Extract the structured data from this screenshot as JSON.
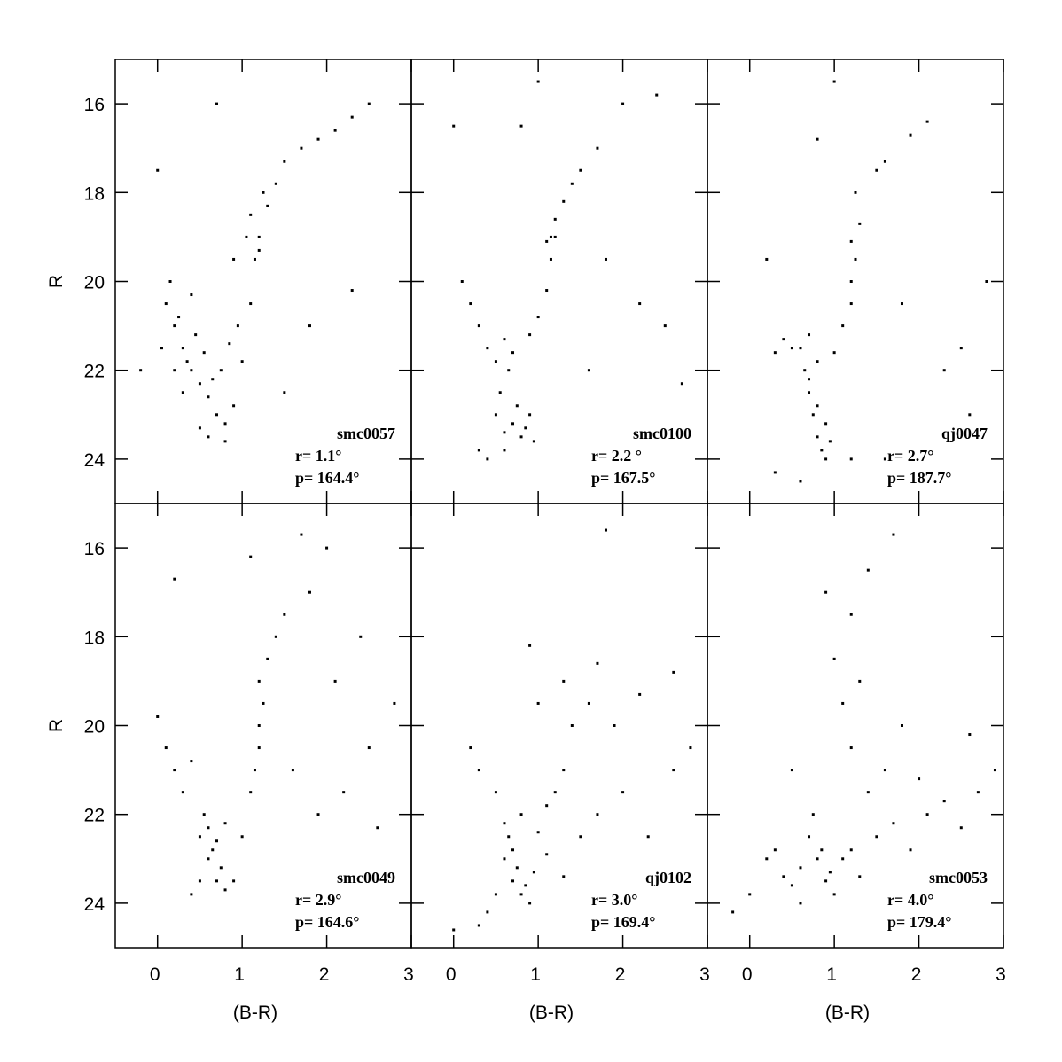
{
  "chart_data": [
    {
      "type": "scatter",
      "annotations": [
        "smc0057",
        "r= 1.1°",
        "p= 164.4°"
      ],
      "ylabel": "R",
      "color": "#000000",
      "xlim": [
        -0.5,
        3
      ],
      "ylim": [
        25,
        15
      ],
      "xticks": [
        0,
        1,
        2,
        3
      ],
      "yticks": [
        16,
        18,
        20,
        22,
        24
      ],
      "x": [
        0.1,
        0.2,
        0.3,
        0.4,
        0.5,
        0.6,
        0.7,
        0.8,
        0.9,
        1.0,
        0.15,
        0.25,
        0.35,
        0.45,
        0.55,
        0.65,
        0.75,
        0.85,
        0.95,
        0.5,
        0.6,
        0.8,
        0.3,
        0.2,
        0.05,
        1.1,
        1.15,
        1.2,
        1.1,
        1.25,
        1.3,
        1.4,
        1.5,
        1.7,
        1.9,
        2.1,
        2.3,
        2.5,
        1.2,
        1.05,
        0.0,
        -0.2,
        1.8,
        2.3,
        0.7,
        1.5,
        0.4,
        0.9
      ],
      "y": [
        20.5,
        21,
        21.5,
        22,
        22.3,
        22.6,
        23,
        23.2,
        22.8,
        21.8,
        20,
        20.8,
        21.8,
        21.2,
        21.6,
        22.2,
        22,
        21.4,
        21,
        23.3,
        23.5,
        23.6,
        22.5,
        22,
        21.5,
        20.5,
        19.5,
        19,
        18.5,
        18,
        18.3,
        17.8,
        17.3,
        17,
        16.8,
        16.6,
        16.3,
        16,
        19.3,
        19,
        17.5,
        22,
        21,
        20.2,
        16,
        22.5,
        20.3,
        19.5
      ]
    },
    {
      "type": "scatter",
      "annotations": [
        "smc0100",
        "r= 2.2 °",
        "p= 167.5°"
      ],
      "color": "#000000",
      "xlim": [
        -0.5,
        3
      ],
      "ylim": [
        25,
        15
      ],
      "xticks": [
        0,
        1,
        2,
        3
      ],
      "yticks": [
        16,
        18,
        20,
        22,
        24
      ],
      "x": [
        0.5,
        0.6,
        0.7,
        0.8,
        0.9,
        0.55,
        0.65,
        0.75,
        0.85,
        0.95,
        0.4,
        0.3,
        0.2,
        0.1,
        0.5,
        0.6,
        0.7,
        0.9,
        1.0,
        1.1,
        1.15,
        1.15,
        1.2,
        1.3,
        1.4,
        1.5,
        1.7,
        1.1,
        1.2,
        2.0,
        2.4,
        0.6,
        0.3,
        2.2,
        2.5,
        2.7,
        1.6,
        0.0,
        1.0,
        0.4,
        1.8,
        0.8
      ],
      "y": [
        23,
        23.4,
        23.2,
        23.5,
        23,
        22.5,
        22,
        22.8,
        23.3,
        23.6,
        21.5,
        21,
        20.5,
        20,
        21.8,
        21.3,
        21.6,
        21.2,
        20.8,
        20.2,
        19.5,
        19,
        18.6,
        18.2,
        17.8,
        17.5,
        17,
        19.1,
        19,
        16,
        15.8,
        23.8,
        23.8,
        20.5,
        21,
        22.3,
        22,
        16.5,
        15.5,
        24,
        19.5,
        16.5
      ]
    },
    {
      "type": "scatter",
      "annotations": [
        "qj0047",
        "r= 2.7°",
        "p= 187.7°"
      ],
      "color": "#000000",
      "xlim": [
        -0.5,
        3
      ],
      "ylim": [
        25,
        15
      ],
      "xticks": [
        0,
        1,
        2,
        3
      ],
      "yticks": [
        16,
        18,
        20,
        22,
        24
      ],
      "x": [
        0.7,
        0.75,
        0.8,
        0.85,
        0.9,
        0.65,
        0.7,
        0.8,
        0.9,
        0.95,
        0.6,
        0.7,
        0.8,
        0.5,
        0.4,
        0.3,
        1.0,
        1.1,
        1.2,
        1.2,
        1.25,
        1.2,
        1.3,
        1.25,
        1.5,
        1.6,
        1.9,
        2.1,
        0.6,
        0.3,
        1.2,
        2.5,
        2.8,
        2.3,
        1.8,
        1.0,
        0.8,
        0.2,
        2.6,
        1.6
      ],
      "y": [
        22.5,
        23,
        23.5,
        23.8,
        24,
        22,
        22.2,
        22.8,
        23.2,
        23.6,
        21.5,
        21.2,
        21.8,
        21.5,
        21.3,
        21.6,
        21.6,
        21,
        20.5,
        20,
        19.5,
        19.1,
        18.7,
        18,
        17.5,
        17.3,
        16.7,
        16.4,
        24.5,
        24.3,
        24,
        21.5,
        20,
        22,
        20.5,
        15.5,
        16.8,
        19.5,
        23,
        24
      ]
    },
    {
      "type": "scatter",
      "annotations": [
        "smc0049",
        "r= 2.9°",
        "p= 164.6°"
      ],
      "ylabel": "R",
      "xlabel": "(B-R)",
      "color": "#000000",
      "xlim": [
        -0.5,
        3
      ],
      "ylim": [
        25,
        15
      ],
      "xticks": [
        0,
        1,
        2,
        3
      ],
      "yticks": [
        16,
        18,
        20,
        22,
        24
      ],
      "x": [
        0.5,
        0.6,
        0.7,
        0.8,
        0.55,
        0.65,
        0.75,
        0.5,
        0.4,
        0.9,
        0.6,
        0.7,
        0.8,
        0.3,
        0.2,
        0.1,
        0.0,
        0.4,
        1.1,
        1.15,
        1.2,
        1.2,
        1.25,
        1.2,
        1.3,
        1.4,
        1.5,
        1.8,
        2.0,
        1.7,
        1.1,
        1.6,
        1.9,
        2.2,
        2.5,
        2.8,
        2.6,
        2.1,
        0.2,
        1.0,
        2.4
      ],
      "y": [
        22.5,
        23,
        23.5,
        23.7,
        22,
        22.8,
        23.2,
        23.5,
        23.8,
        23.5,
        22.3,
        22.6,
        22.2,
        21.5,
        21,
        20.5,
        19.8,
        20.8,
        21.5,
        21,
        20.5,
        20,
        19.5,
        19,
        18.5,
        18,
        17.5,
        17,
        16,
        15.7,
        16.2,
        21,
        22,
        21.5,
        20.5,
        19.5,
        22.3,
        19,
        16.7,
        22.5,
        18
      ]
    },
    {
      "type": "scatter",
      "annotations": [
        "qj0102",
        "r= 3.0°",
        "p= 169.4°"
      ],
      "xlabel": "(B-R)",
      "color": "#000000",
      "xlim": [
        -0.5,
        3
      ],
      "ylim": [
        25,
        15
      ],
      "xticks": [
        0,
        1,
        2,
        3
      ],
      "yticks": [
        16,
        18,
        20,
        22,
        24
      ],
      "x": [
        0.6,
        0.7,
        0.8,
        0.9,
        0.65,
        0.75,
        0.85,
        0.95,
        0.7,
        0.6,
        0.5,
        0.4,
        0.3,
        0.5,
        0.3,
        0.2,
        0.8,
        1.0,
        1.1,
        1.2,
        1.3,
        1.5,
        1.7,
        2.0,
        2.3,
        2.6,
        2.8,
        1.4,
        1.3,
        1.6,
        1.9,
        2.2,
        2.6,
        1.0,
        0.9,
        1.7,
        0.0,
        1.8,
        1.1,
        1.3
      ],
      "y": [
        23,
        23.5,
        23.8,
        24,
        22.5,
        23.2,
        23.6,
        23.3,
        22.8,
        22.2,
        23.8,
        24.2,
        24.5,
        21.5,
        21,
        20.5,
        22,
        22.4,
        21.8,
        21.5,
        21,
        22.5,
        22,
        21.5,
        22.5,
        21,
        20.5,
        20,
        19,
        19.5,
        20,
        19.3,
        18.8,
        19.5,
        18.2,
        18.6,
        24.6,
        15.6,
        22.9,
        23.4
      ]
    },
    {
      "type": "scatter",
      "annotations": [
        "smc0053",
        "r= 4.0°",
        "p= 179.4°"
      ],
      "xlabel": "(B-R)",
      "color": "#000000",
      "xlim": [
        -0.5,
        3
      ],
      "ylim": [
        25,
        15
      ],
      "xticks": [
        0,
        1,
        2,
        3
      ],
      "yticks": [
        16,
        18,
        20,
        22,
        24
      ],
      "x": [
        0.7,
        0.8,
        0.9,
        1.0,
        0.6,
        0.75,
        0.85,
        0.95,
        1.1,
        1.2,
        1.3,
        0.5,
        0.4,
        0.3,
        0.2,
        1.5,
        1.7,
        1.9,
        2.1,
        2.3,
        2.5,
        2.7,
        2.9,
        1.4,
        1.6,
        2.0,
        1.2,
        1.1,
        1.3,
        1.0,
        1.2,
        0.9,
        1.4,
        0.0,
        -0.2,
        0.5,
        2.6,
        1.8,
        1.7,
        0.6
      ],
      "y": [
        22.5,
        23,
        23.5,
        23.8,
        23.2,
        22,
        22.8,
        23.3,
        23,
        22.8,
        23.4,
        23.6,
        23.4,
        22.8,
        23,
        22.5,
        22.2,
        22.8,
        22,
        21.7,
        22.3,
        21.5,
        21,
        21.5,
        21,
        21.2,
        20.5,
        19.5,
        19,
        18.5,
        17.5,
        17,
        16.5,
        23.8,
        24.2,
        21,
        20.2,
        20,
        15.7,
        24
      ]
    }
  ]
}
